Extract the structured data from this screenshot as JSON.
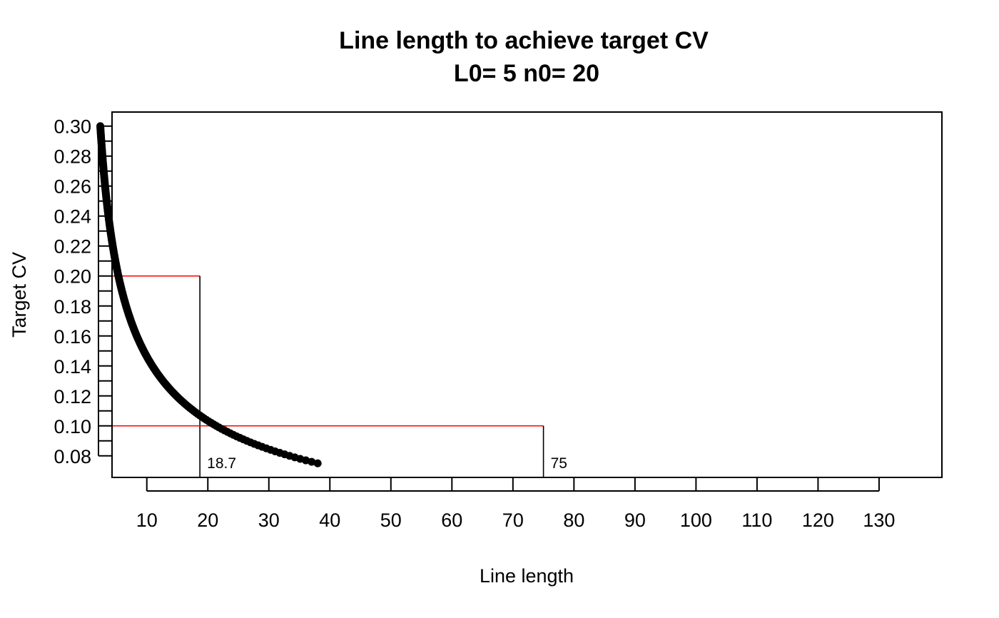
{
  "chart_data": {
    "type": "scatter",
    "title": "Line length to achieve target CV",
    "subtitle": "L0= 5 n0= 20",
    "xlabel": "Line length",
    "ylabel": "Target CV",
    "xlim": [
      4.3,
      140.3
    ],
    "ylim": [
      0.0656,
      0.3094
    ],
    "x_ticks": [
      10,
      20,
      30,
      40,
      50,
      60,
      70,
      80,
      90,
      100,
      110,
      120,
      130
    ],
    "y_ticks": [
      0.08,
      0.1,
      0.12,
      0.14,
      0.16,
      0.18,
      0.2,
      0.22,
      0.24,
      0.26,
      0.28,
      0.3
    ],
    "y_tick_labels": [
      "0.08",
      "0.10",
      "0.12",
      "0.14",
      "0.16",
      "0.18",
      "0.20",
      "0.22",
      "0.24",
      "0.26",
      "0.28",
      "0.30"
    ],
    "y_minor_ticks": [
      0.09,
      0.11,
      0.13,
      0.15,
      0.17,
      0.19,
      0.21,
      0.23,
      0.25,
      0.27,
      0.29
    ],
    "curve": {
      "L0": 5,
      "n0": 20,
      "cv_from": 0.3,
      "cv_to": 0.075,
      "cv_step": 0.001
    },
    "reference_lines": [
      {
        "cv": 0.2,
        "length": 18.7,
        "label": "18.7"
      },
      {
        "cv": 0.1,
        "length": 75,
        "label": "75"
      }
    ],
    "grid": false,
    "legend": "none",
    "colors": {
      "points": "#000000",
      "horizontal_ref": "#ff0000",
      "vertical_ref": "#000000"
    }
  }
}
